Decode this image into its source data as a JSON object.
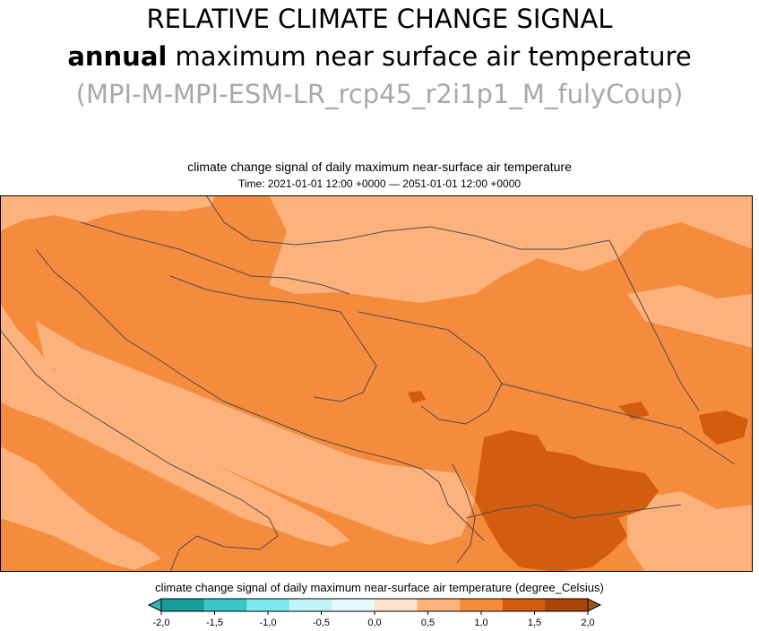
{
  "header": {
    "line1": "RELATIVE CLIMATE CHANGE SIGNAL",
    "line2_bold": "annual",
    "line2_rest": " maximum near surface air temperature",
    "line3": "(MPI-M-MPI-ESM-LR_rcp45_r2i1p1_M_fulyCoup)"
  },
  "plot": {
    "title": "climate change signal of daily maximum near-surface air temperature",
    "time": "Time: 2021-01-01 12:00 +0000 — 2051-01-01 12:00 +0000"
  },
  "colorbar": {
    "title": "climate change signal of daily maximum near-surface air temperature (degree_Celsius)",
    "ticks": [
      "-2,0",
      "-1,5",
      "-1,0",
      "-0,5",
      "0,0",
      "0,5",
      "1,0",
      "1,5",
      "2,0"
    ],
    "colors": [
      "#1a9b9b",
      "#3ec4c4",
      "#7ee8ef",
      "#c2f5f7",
      "#e6fbfc",
      "#fde4cc",
      "#fdb27c",
      "#f58b3c",
      "#d35d0f",
      "#a84607"
    ],
    "min_arrow_color": "#2fb3b3",
    "max_arrow_color": "#a0520f"
  },
  "map": {
    "colors": {
      "low": "#fdb27c",
      "mid": "#f58b3c",
      "high": "#d35d0f",
      "border": "#4d4d4d"
    }
  }
}
